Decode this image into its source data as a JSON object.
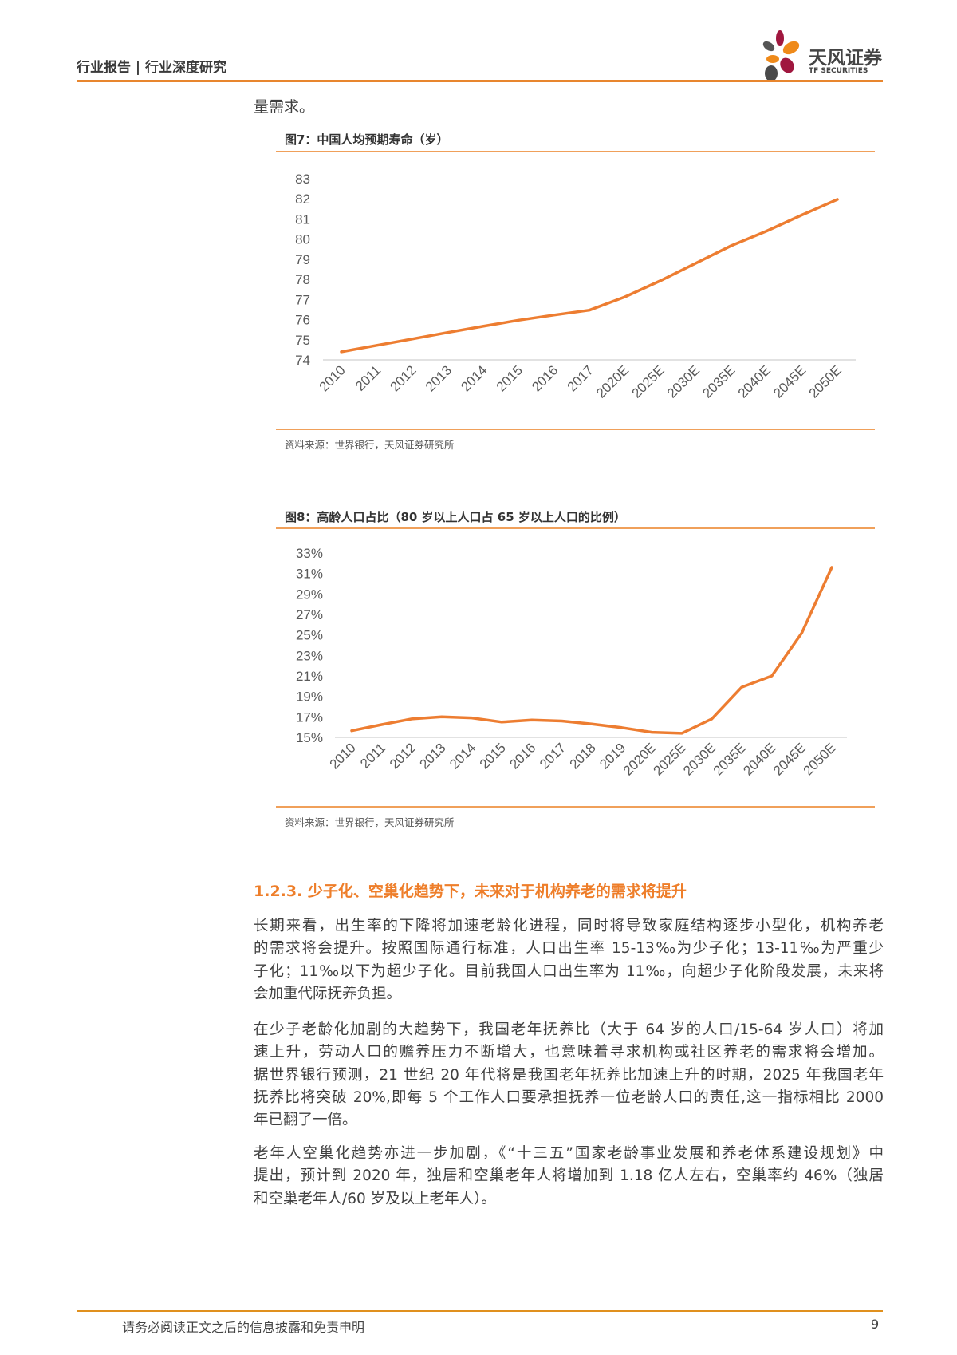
{
  "header": {
    "category": "行业报告 | 行业深度研究",
    "logo_cn": "天风证券",
    "logo_en": "TF SECURITIES"
  },
  "intro_fragment": "量需求。",
  "figures": [
    {
      "title": "图7：中国人均预期寿命（岁）",
      "source": "资料来源：世界银行，天风证券研究所"
    },
    {
      "title": "图8：高龄人口占比（80 岁以上人口占 65 岁以上人口的比例）",
      "source": "资料来源：世界银行，天风证券研究所"
    }
  ],
  "chart_data": [
    {
      "type": "line",
      "title": "中国人均预期寿命（岁）",
      "xlabel": "",
      "ylabel": "",
      "ylim": [
        74,
        83
      ],
      "yticks": [
        "74",
        "75",
        "76",
        "77",
        "78",
        "79",
        "80",
        "81",
        "82",
        "83"
      ],
      "categories": [
        "2010",
        "2011",
        "2012",
        "2013",
        "2014",
        "2015",
        "2016",
        "2017",
        "2020E",
        "2025E",
        "2030E",
        "2035E",
        "2040E",
        "2045E",
        "2050E"
      ],
      "series": [
        {
          "name": "人均预期寿命",
          "color": "#ed7d31",
          "values": [
            74.4,
            74.72,
            75.04,
            75.36,
            75.67,
            75.97,
            76.23,
            76.47,
            77.13,
            77.93,
            78.8,
            79.67,
            80.4,
            81.2,
            81.97
          ]
        }
      ],
      "grid": false,
      "legend": "none"
    },
    {
      "type": "line",
      "title": "高龄人口占比（80 岁以上人口占 65 岁以上人口的比例）",
      "xlabel": "",
      "ylabel": "",
      "ylim": [
        15,
        33
      ],
      "yticks": [
        "15%",
        "17%",
        "19%",
        "21%",
        "23%",
        "25%",
        "27%",
        "29%",
        "31%",
        "33%"
      ],
      "categories": [
        "2010",
        "2011",
        "2012",
        "2013",
        "2014",
        "2015",
        "2016",
        "2017",
        "2018",
        "2019",
        "2020E",
        "2025E",
        "2030E",
        "2035E",
        "2040E",
        "2045E",
        "2050E"
      ],
      "series": [
        {
          "name": "高龄人口占比",
          "color": "#ed7d31",
          "values": [
            15.65,
            16.25,
            16.8,
            17.0,
            16.9,
            16.5,
            16.7,
            16.6,
            16.3,
            15.95,
            15.5,
            15.4,
            16.8,
            19.9,
            21.0,
            25.2,
            31.6
          ]
        }
      ],
      "grid": false,
      "legend": "none"
    }
  ],
  "section": {
    "heading": "1.2.3. 少子化、空巢化趋势下，未来对于机构养老的需求将提升",
    "paragraphs": [
      [
        "长期来看，出生率的下降将加速老龄化进程，同时将导致家庭结构逐步小型化，机构养老",
        "的需求将会提升。按照国际通行标准，人口出生率 15-13‰为少子化；13-11‰为严重少",
        "子化；11‰以下为超少子化。目前我国人口出生率为 11‰，向超少子化阶段发展，未来将",
        "会加重代际抚养负担。"
      ],
      [
        "在少子老龄化加剧的大趋势下，我国老年抚养比（大于 64 岁的人口/15-64 岁人口）将加",
        "速上升，劳动人口的赡养压力不断增大，也意味着寻求机构或社区养老的需求将会增加。",
        "据世界银行预测，21 世纪 20 年代将是我国老年抚养比加速上升的时期，2025 年我国老年",
        "抚养比将突破 20%,即每 5 个工作人口要承担抚养一位老龄人口的责任,这一指标相比 2000",
        "年已翻了一倍。"
      ],
      [
        "老年人空巢化趋势亦进一步加剧，《“十三五”国家老龄事业发展和养老体系建设规划》中",
        "提出，预计到 2020 年，独居和空巢老年人将增加到 1.18 亿人左右，空巢率约 46%（独居",
        "和空巢老年人/60 岁及以上老年人）。"
      ]
    ]
  },
  "footer": {
    "disclaimer": "请务必阅读正文之后的信息披露和免责申明",
    "page_number": "9"
  },
  "colors": {
    "accent": "#e8862e",
    "line": "#ed7d31",
    "axis_text": "#595959",
    "axis_line": "#d9d9d9"
  }
}
